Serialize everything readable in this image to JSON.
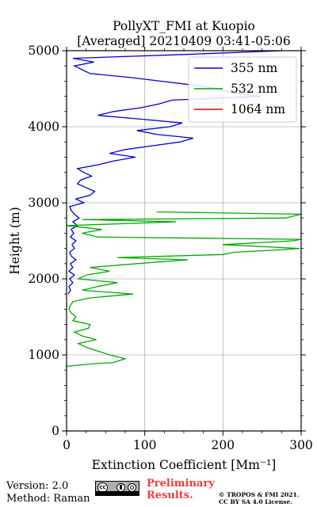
{
  "chart_data": {
    "type": "line",
    "title": "PollyXT_FMI at Kuopio",
    "subtitle": "[Averaged] 20210409 03:41-05:06",
    "xlabel": "Extinction Coefficient [Mm⁻¹]",
    "ylabel": "Height (m)",
    "xlim": [
      0,
      300
    ],
    "ylim": [
      0,
      5000
    ],
    "x_ticks": [
      "0",
      "100",
      "200",
      "300"
    ],
    "y_ticks": [
      "0",
      "1000",
      "2000",
      "3000",
      "4000",
      "5000"
    ],
    "grid": true,
    "legend": "top-right",
    "series": [
      {
        "name": "355 nm",
        "color": "#0000dd",
        "points": [
          [
            2,
            1800
          ],
          [
            5,
            1850
          ],
          [
            3,
            1900
          ],
          [
            8,
            1950
          ],
          [
            4,
            2000
          ],
          [
            10,
            2050
          ],
          [
            3,
            2100
          ],
          [
            8,
            2150
          ],
          [
            5,
            2200
          ],
          [
            12,
            2250
          ],
          [
            6,
            2300
          ],
          [
            4,
            2350
          ],
          [
            10,
            2400
          ],
          [
            7,
            2450
          ],
          [
            12,
            2500
          ],
          [
            5,
            2550
          ],
          [
            9,
            2600
          ],
          [
            6,
            2650
          ],
          [
            14,
            2700
          ],
          [
            8,
            2750
          ],
          [
            16,
            2800
          ],
          [
            10,
            2850
          ],
          [
            6,
            2900
          ],
          [
            4,
            2950
          ],
          [
            22,
            3000
          ],
          [
            12,
            3050
          ],
          [
            30,
            3100
          ],
          [
            36,
            3150
          ],
          [
            25,
            3200
          ],
          [
            14,
            3250
          ],
          [
            18,
            3300
          ],
          [
            32,
            3350
          ],
          [
            22,
            3400
          ],
          [
            14,
            3450
          ],
          [
            40,
            3500
          ],
          [
            60,
            3550
          ],
          [
            88,
            3600
          ],
          [
            55,
            3650
          ],
          [
            75,
            3700
          ],
          [
            110,
            3750
          ],
          [
            145,
            3800
          ],
          [
            162,
            3850
          ],
          [
            115,
            3900
          ],
          [
            90,
            3950
          ],
          [
            132,
            4000
          ],
          [
            148,
            4050
          ],
          [
            95,
            4100
          ],
          [
            40,
            4150
          ],
          [
            60,
            4200
          ],
          [
            95,
            4250
          ],
          [
            118,
            4300
          ],
          [
            135,
            4350
          ],
          [
            248,
            4400
          ],
          [
            210,
            4450
          ],
          [
            195,
            4500
          ],
          [
            160,
            4550
          ],
          [
            120,
            4600
          ],
          [
            80,
            4650
          ],
          [
            30,
            4700
          ],
          [
            20,
            4750
          ],
          [
            10,
            4800
          ],
          [
            35,
            4850
          ],
          [
            8,
            4900
          ],
          [
            150,
            4950
          ],
          [
            275,
            5000
          ]
        ]
      },
      {
        "name": "532 nm",
        "color": "#00aa00",
        "points": [
          [
            0,
            850
          ],
          [
            30,
            880
          ],
          [
            60,
            900
          ],
          [
            75,
            950
          ],
          [
            55,
            1000
          ],
          [
            40,
            1050
          ],
          [
            25,
            1100
          ],
          [
            15,
            1150
          ],
          [
            38,
            1200
          ],
          [
            20,
            1250
          ],
          [
            10,
            1300
          ],
          [
            28,
            1350
          ],
          [
            30,
            1400
          ],
          [
            8,
            1450
          ],
          [
            12,
            1500
          ],
          [
            6,
            1550
          ],
          [
            3,
            1600
          ],
          [
            5,
            1650
          ],
          [
            8,
            1700
          ],
          [
            30,
            1750
          ],
          [
            85,
            1800
          ],
          [
            20,
            1850
          ],
          [
            40,
            1900
          ],
          [
            65,
            1950
          ],
          [
            15,
            2000
          ],
          [
            25,
            2050
          ],
          [
            55,
            2100
          ],
          [
            30,
            2150
          ],
          [
            90,
            2200
          ],
          [
            155,
            2250
          ],
          [
            65,
            2280
          ],
          [
            200,
            2320
          ],
          [
            215,
            2350
          ],
          [
            270,
            2380
          ],
          [
            298,
            2400
          ],
          [
            200,
            2450
          ],
          [
            290,
            2500
          ],
          [
            300,
            2520
          ],
          [
            40,
            2550
          ],
          [
            20,
            2600
          ],
          [
            45,
            2650
          ],
          [
            0,
            2700
          ],
          [
            140,
            2750
          ],
          [
            20,
            2780
          ],
          [
            280,
            2800
          ],
          [
            300,
            2850
          ],
          [
            115,
            2880
          ]
        ]
      },
      {
        "name": "1064 nm",
        "color": "#dd0000",
        "points": []
      }
    ]
  },
  "footer": {
    "version": "Version: 2.0",
    "method": "Method: Raman",
    "preliminary_line1": "Preliminary",
    "preliminary_line2": "Results.",
    "copyright_line1": "© TROPOS & FMI 2021.",
    "copyright_line2": "CC BY SA 4.0 License."
  }
}
